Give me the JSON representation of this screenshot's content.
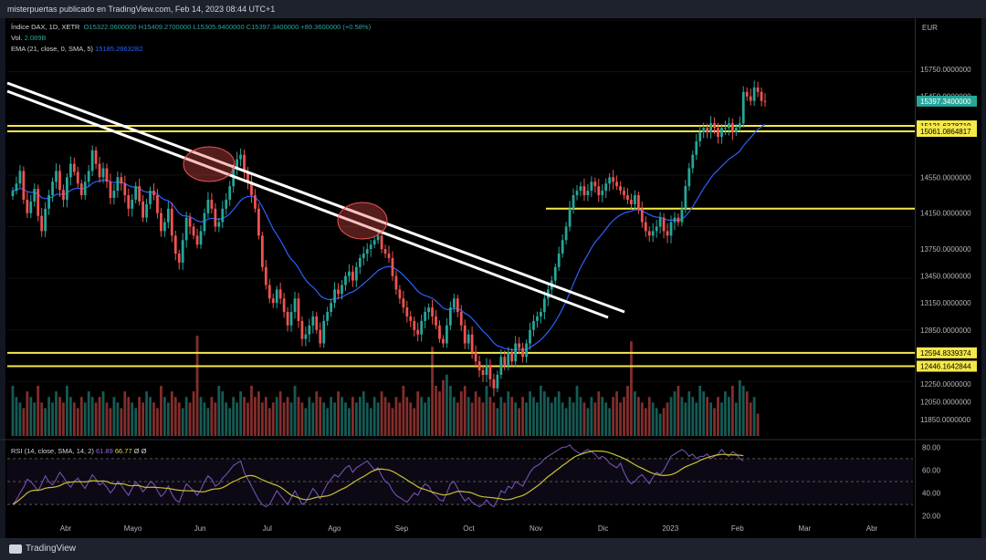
{
  "header": {
    "publisher_line": "misterpuertas publicado en TradingView.com, Feb 14, 2023 08:44 UTC+1"
  },
  "legend": {
    "symbol": "Índice DAX, 1D, XETR",
    "ohlc": "O15322.0600000  H15409.2700000  L15305.9400000  C15397.3400000  +89.3600000 (+0.58%)",
    "vol_label": "Vol.",
    "vol_value": "2.089B",
    "ema_label": "EMA (21, close, 0, SMA, 5)",
    "ema_value": "15185.2663282",
    "rsi_label": "RSI (14, close, SMA, 14, 2)",
    "rsi_value": "61.89",
    "rsi_ma_value": "66.77",
    "rsi_extra": "Ø Ø"
  },
  "axis": {
    "currency": "EUR"
  },
  "footer": {
    "brand": "TradingView"
  },
  "colors": {
    "up": "#26a69a",
    "down": "#ef5350",
    "ema": "#2962ff",
    "level": "#f5e94a",
    "trend": "#ffffff",
    "rsi": "#7e57c2",
    "rsi_ma": "#c9c130",
    "price_tag": "#26a69a"
  },
  "chart_data": {
    "type": "candlestick",
    "x_labels": [
      "Abr",
      "Mayo",
      "Jun",
      "Jul",
      "Ago",
      "Sep",
      "Oct",
      "Nov",
      "Dic",
      "2023",
      "Feb",
      "Mar",
      "Abr"
    ],
    "y_tick_labels": [
      "15750.0000000",
      "15450.0000000",
      "14550.0000000",
      "14150.0000000",
      "13750.0000000",
      "13450.0000000",
      "13150.0000000",
      "12850.0000000",
      "12250.0000000",
      "12050.0000000",
      "11850.0000000"
    ],
    "y_range": [
      11700,
      16300
    ],
    "last_price": "15397.3400000",
    "horizontal_levels": [
      "15121.6378719",
      "15061.0864817",
      "12594.8339374",
      "12446.1642844"
    ],
    "unlabeled_level": 14200,
    "rsi_ticks": [
      "80.00",
      "60.00",
      "40.00",
      "20.00"
    ],
    "rsi_range": [
      15,
      85
    ],
    "rsi_bands": [
      70,
      50,
      30
    ],
    "close_series": [
      14400,
      14480,
      14620,
      14300,
      14150,
      14280,
      14420,
      14120,
      13950,
      14200,
      14350,
      14500,
      14620,
      14410,
      14300,
      14550,
      14700,
      14610,
      14480,
      14350,
      14500,
      14620,
      14850,
      14700,
      14550,
      14650,
      14500,
      14320,
      14400,
      14550,
      14480,
      14350,
      14200,
      14300,
      14450,
      14280,
      14100,
      14250,
      14400,
      14350,
      14150,
      13950,
      14050,
      14200,
      13900,
      13700,
      13600,
      13850,
      14100,
      14000,
      13900,
      13800,
      13950,
      14150,
      14300,
      14200,
      14000,
      14050,
      14200,
      14300,
      14450,
      14650,
      14750,
      14800,
      14620,
      14500,
      14350,
      14200,
      13900,
      13550,
      13350,
      13200,
      13150,
      13300,
      13200,
      13050,
      12900,
      13050,
      13200,
      12950,
      12750,
      12800,
      12900,
      13000,
      12850,
      12700,
      12950,
      13050,
      13150,
      13300,
      13250,
      13350,
      13450,
      13500,
      13400,
      13550,
      13650,
      13700,
      13750,
      13800,
      13850,
      13900,
      13750,
      13700,
      13650,
      13450,
      13300,
      13200,
      13100,
      13000,
      12950,
      12850,
      12800,
      12950,
      13050,
      13100,
      13000,
      12900,
      12750,
      12700,
      12900,
      13100,
      13200,
      13050,
      12900,
      12700,
      12800,
      12600,
      12500,
      12400,
      12350,
      12450,
      12300,
      12200,
      12350,
      12550,
      12450,
      12600,
      12500,
      12700,
      12650,
      12550,
      12700,
      12850,
      12950,
      13000,
      13050,
      13200,
      13300,
      13400,
      13550,
      13700,
      13850,
      14000,
      14200,
      14350,
      14400,
      14450,
      14350,
      14400,
      14500,
      14450,
      14350,
      14400,
      14480,
      14550,
      14500,
      14450,
      14400,
      14350,
      14300,
      14250,
      14350,
      14200,
      14050,
      13950,
      13900,
      13950,
      14000,
      14100,
      13950,
      13900,
      14050,
      14100,
      14050,
      14200,
      14450,
      14650,
      14800,
      14950,
      15050,
      15100,
      15050,
      15150,
      15100,
      15000,
      15100,
      15100,
      15150,
      15050,
      15100,
      15150,
      15500,
      15450,
      15400,
      15550,
      15500,
      15400,
      15397
    ],
    "volume_series": [
      9,
      7,
      6,
      5,
      8,
      7,
      6,
      9,
      6,
      5,
      7,
      6,
      8,
      7,
      6,
      9,
      7,
      6,
      5,
      7,
      6,
      8,
      7,
      6,
      7,
      8,
      6,
      5,
      7,
      6,
      5,
      8,
      7,
      6,
      5,
      7,
      6,
      8,
      7,
      6,
      5,
      9,
      7,
      6,
      8,
      7,
      6,
      5,
      7,
      6,
      8,
      18,
      7,
      6,
      5,
      7,
      6,
      9,
      8,
      6,
      5,
      7,
      6,
      8,
      7,
      6,
      9,
      7,
      8,
      6,
      7,
      5,
      6,
      7,
      8,
      6,
      7,
      6,
      9,
      7,
      6,
      5,
      7,
      6,
      8,
      7,
      6,
      5,
      7,
      6,
      8,
      7,
      6,
      5,
      7,
      6,
      7,
      8,
      6,
      5,
      7,
      6,
      8,
      7,
      6,
      5,
      7,
      6,
      9,
      7,
      6,
      5,
      8,
      7,
      6,
      7,
      16,
      9,
      8,
      10,
      11,
      9,
      7,
      6,
      8,
      9,
      7,
      6,
      8,
      7,
      6,
      9,
      7,
      6,
      5,
      7,
      6,
      8,
      7,
      6,
      5,
      7,
      6,
      8,
      7,
      6,
      9,
      8,
      7,
      6,
      7,
      8,
      6,
      5,
      7,
      6,
      9,
      7,
      6,
      5,
      7,
      6,
      8,
      7,
      6,
      5,
      7,
      8,
      6,
      7,
      9,
      17,
      8,
      7,
      6,
      5,
      7,
      6,
      5,
      4,
      5,
      6,
      7,
      8,
      9,
      7,
      6,
      8,
      7,
      6,
      9,
      8,
      7,
      6,
      5,
      7,
      6,
      8,
      7,
      9,
      6,
      10,
      9,
      8,
      6,
      7,
      4
    ],
    "rsi_series": [
      30,
      34,
      40,
      45,
      52,
      50,
      46,
      42,
      48,
      55,
      50,
      47,
      52,
      58,
      54,
      49,
      45,
      50,
      53,
      48,
      44,
      50,
      56,
      52,
      47,
      49,
      45,
      40,
      44,
      50,
      47,
      42,
      38,
      44,
      50,
      46,
      41,
      45,
      50,
      48,
      42,
      37,
      40,
      46,
      39,
      34,
      32,
      40,
      48,
      45,
      42,
      38,
      43,
      50,
      55,
      52,
      46,
      48,
      53,
      56,
      60,
      64,
      66,
      68,
      58,
      52,
      46,
      40,
      34,
      30,
      28,
      30,
      36,
      42,
      38,
      34,
      30,
      36,
      42,
      36,
      30,
      32,
      38,
      44,
      40,
      35,
      42,
      48,
      52,
      56,
      54,
      58,
      62,
      64,
      58,
      62,
      64,
      66,
      68,
      64,
      60,
      62,
      55,
      50,
      48,
      42,
      38,
      36,
      34,
      32,
      36,
      40,
      38,
      44,
      48,
      46,
      40,
      38,
      34,
      33,
      40,
      48,
      50,
      44,
      38,
      33,
      36,
      32,
      30,
      28,
      30,
      34,
      30,
      28,
      34,
      42,
      40,
      46,
      44,
      50,
      48,
      46,
      52,
      58,
      62,
      64,
      66,
      70,
      72,
      74,
      76,
      78,
      80,
      80,
      82,
      78,
      76,
      74,
      76,
      78,
      76,
      74,
      70,
      72,
      70,
      66,
      64,
      62,
      66,
      58,
      52,
      48,
      50,
      54,
      56,
      52,
      48,
      54,
      58,
      56,
      60,
      66,
      72,
      74,
      76,
      78,
      76,
      72,
      74,
      70,
      72,
      72,
      74,
      70,
      72,
      74,
      78,
      74,
      72,
      76,
      74,
      70,
      68
    ]
  }
}
